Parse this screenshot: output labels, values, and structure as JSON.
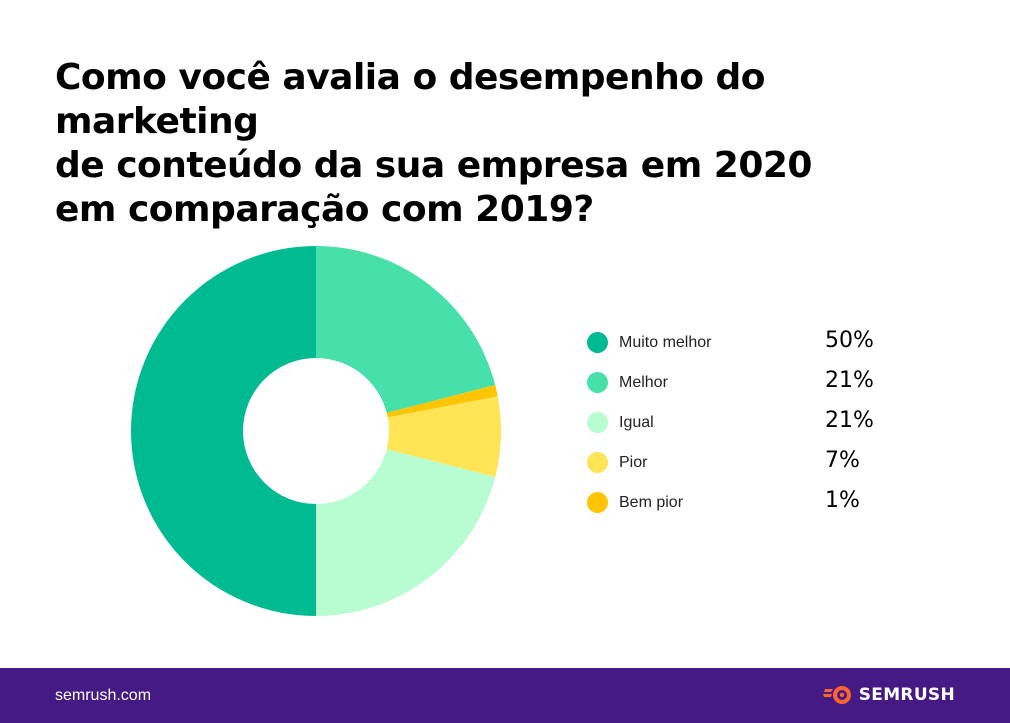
{
  "title_lines": [
    "Como você avalia o desempenho do marketing",
    "de conteúdo da sua empresa em 2020",
    "em comparação com 2019?"
  ],
  "chart_data": {
    "type": "pie",
    "variant": "donut",
    "title": "Como você avalia o desempenho do marketing de conteúdo da sua empresa em 2020 em comparação com 2019?",
    "categories": [
      "Muito melhor",
      "Melhor",
      "Igual",
      "Pior",
      "Bem pior"
    ],
    "values": [
      50,
      21,
      21,
      7,
      1
    ],
    "value_labels": [
      "50%",
      "21%",
      "21%",
      "7%",
      "1%"
    ],
    "colors": [
      "#00ba92",
      "#47e0aa",
      "#b8fdd1",
      "#ffe555",
      "#ffc502"
    ],
    "legend_placement": "right"
  },
  "footer": {
    "url": "semrush.com",
    "brand": "SEMRUSH",
    "brand_icon": "semrush-fireball-icon",
    "background": "#451a84"
  }
}
